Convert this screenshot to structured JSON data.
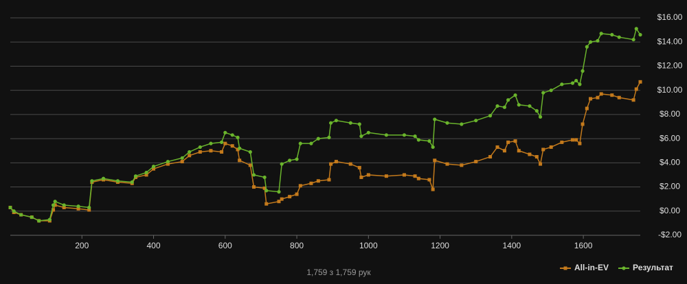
{
  "chart_data": {
    "type": "line",
    "caption": "1,759 з 1,759 рук",
    "x": [
      0,
      10,
      30,
      60,
      80,
      110,
      120,
      125,
      150,
      190,
      220,
      228,
      260,
      300,
      340,
      350,
      380,
      400,
      440,
      480,
      500,
      530,
      560,
      590,
      600,
      620,
      635,
      640,
      670,
      680,
      710,
      715,
      750,
      758,
      780,
      800,
      810,
      840,
      860,
      890,
      895,
      910,
      950,
      975,
      980,
      1000,
      1050,
      1100,
      1130,
      1140,
      1170,
      1180,
      1185,
      1220,
      1260,
      1300,
      1340,
      1360,
      1380,
      1390,
      1410,
      1420,
      1450,
      1470,
      1480,
      1488,
      1510,
      1540,
      1570,
      1580,
      1590,
      1598,
      1610,
      1620,
      1640,
      1650,
      1680,
      1700,
      1740,
      1748,
      1759
    ],
    "series": [
      {
        "name": "All-in-EV",
        "color": "#c47a1c",
        "marker": "square",
        "values": [
          0.3,
          -0.1,
          -0.3,
          -0.5,
          -0.8,
          -0.8,
          0.1,
          0.5,
          0.3,
          0.2,
          0.1,
          2.4,
          2.6,
          2.4,
          2.3,
          2.8,
          3.0,
          3.5,
          3.9,
          4.1,
          4.6,
          4.9,
          5.0,
          4.9,
          5.6,
          5.4,
          5.1,
          4.2,
          3.8,
          2.0,
          1.9,
          0.6,
          0.8,
          1.0,
          1.2,
          1.4,
          2.1,
          2.3,
          2.5,
          2.6,
          3.9,
          4.1,
          3.9,
          3.6,
          2.8,
          3.0,
          2.9,
          3.0,
          2.9,
          2.7,
          2.6,
          1.8,
          4.2,
          3.9,
          3.8,
          4.1,
          4.5,
          5.3,
          5.0,
          5.7,
          5.8,
          5.0,
          4.7,
          4.5,
          3.9,
          5.1,
          5.3,
          5.7,
          5.9,
          5.9,
          5.6,
          7.2,
          8.5,
          9.3,
          9.4,
          9.7,
          9.6,
          9.4,
          9.2,
          10.1,
          10.7
        ]
      },
      {
        "name": "Результат",
        "color": "#6ab42c",
        "marker": "circle",
        "values": [
          0.3,
          0.0,
          -0.3,
          -0.5,
          -0.8,
          -0.7,
          0.5,
          0.8,
          0.5,
          0.4,
          0.3,
          2.5,
          2.7,
          2.5,
          2.4,
          2.9,
          3.2,
          3.7,
          4.1,
          4.4,
          4.9,
          5.3,
          5.6,
          5.7,
          6.5,
          6.3,
          6.1,
          5.2,
          4.9,
          3.0,
          2.8,
          1.7,
          1.6,
          3.9,
          4.2,
          4.3,
          5.6,
          5.6,
          6.0,
          6.1,
          7.3,
          7.5,
          7.3,
          7.2,
          6.2,
          6.5,
          6.3,
          6.3,
          6.2,
          5.9,
          5.8,
          5.3,
          7.6,
          7.3,
          7.2,
          7.5,
          7.9,
          8.7,
          8.6,
          9.2,
          9.6,
          8.8,
          8.7,
          8.3,
          7.8,
          9.8,
          10.0,
          10.5,
          10.6,
          10.8,
          10.5,
          11.6,
          13.6,
          14.0,
          14.1,
          14.7,
          14.6,
          14.4,
          14.2,
          15.1,
          14.6
        ]
      }
    ],
    "xlim": [
      0,
      1759
    ],
    "xticks": [
      200,
      400,
      600,
      800,
      1000,
      1200,
      1400,
      1600
    ],
    "ylim": [
      -2,
      16
    ],
    "yticks": [
      {
        "value": -2,
        "label": "-$2.00"
      },
      {
        "value": 0,
        "label": "$0.00"
      },
      {
        "value": 2,
        "label": "$2.00"
      },
      {
        "value": 4,
        "label": "$4.00"
      },
      {
        "value": 6,
        "label": "$6.00"
      },
      {
        "value": 8,
        "label": "$8.00"
      },
      {
        "value": 10,
        "label": "$10.00"
      },
      {
        "value": 12,
        "label": "$12.00"
      },
      {
        "value": 14,
        "label": "$14.00"
      },
      {
        "value": 16,
        "label": "$16.00"
      }
    ],
    "grid": true,
    "legend": "bottom-right"
  }
}
